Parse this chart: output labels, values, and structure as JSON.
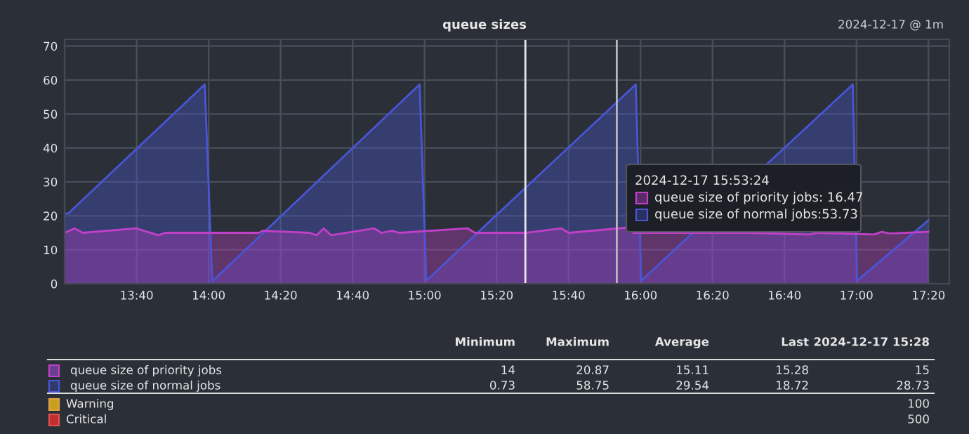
{
  "chart_data": {
    "type": "area",
    "title": "queue sizes",
    "subtitle": "2024-12-17 @ 1m",
    "x": [
      13.333,
      13.379,
      13.417,
      13.667,
      13.7,
      13.767,
      13.8,
      14.233,
      14.25,
      14.467,
      14.5,
      14.533,
      14.567,
      14.767,
      14.8,
      14.85,
      14.883,
      15.2,
      15.233,
      15.467,
      15.633,
      15.667,
      15.933,
      15.967,
      16.5,
      16.783,
      16.817,
      17.083,
      17.117,
      17.15,
      17.333
    ],
    "series": [
      {
        "name": "queue size of normal jobs",
        "color": "#4a55d6",
        "x": [
          13.333,
          13.35,
          13.982,
          14.017,
          14.977,
          15.008,
          15.978,
          16.003,
          16.983,
          17.003,
          17.333
        ],
        "values": [
          20.7,
          20.7,
          58.7,
          0.7,
          58.7,
          0.9,
          58.7,
          0.9,
          58.7,
          0.9,
          18.7
        ]
      },
      {
        "name": "queue size of priority jobs",
        "color": "#c040c8",
        "values": [
          15,
          16.3,
          15,
          16.3,
          15.6,
          14.3,
          15,
          15,
          15.6,
          15,
          14.3,
          16.3,
          14.3,
          16.3,
          15,
          15.6,
          15,
          16.3,
          15,
          15,
          16.3,
          15,
          16.5,
          15,
          15,
          14.5,
          15,
          14.5,
          15.3,
          14.8,
          15.3
        ]
      }
    ],
    "xlim": [
      13.333,
      17.43
    ],
    "xticks": [
      {
        "value": 13.6667,
        "label": "13:40"
      },
      {
        "value": 14,
        "label": "14:00"
      },
      {
        "value": 14.3333,
        "label": "14:20"
      },
      {
        "value": 14.6667,
        "label": "14:40"
      },
      {
        "value": 15,
        "label": "15:00"
      },
      {
        "value": 15.3333,
        "label": "15:20"
      },
      {
        "value": 15.6667,
        "label": "15:40"
      },
      {
        "value": 16,
        "label": "16:00"
      },
      {
        "value": 16.3333,
        "label": "16:20"
      },
      {
        "value": 16.6667,
        "label": "16:40"
      },
      {
        "value": 17,
        "label": "17:00"
      },
      {
        "value": 17.3333,
        "label": "17:20"
      }
    ],
    "ylim": [
      0,
      72
    ],
    "yticks": [
      0,
      10,
      20,
      30,
      40,
      50,
      60,
      70
    ],
    "grid": true,
    "legend": "bottom",
    "ref_lines": [
      {
        "axis": "x",
        "value": 15.4667,
        "color": "#e8e8e8"
      },
      {
        "axis": "x",
        "value": 15.89,
        "color": "#b8b8c0"
      }
    ],
    "annotations": [
      "2024-12-17 15:53:24",
      "queue size of priority jobs: 16.47",
      "queue size of normal jobs:53.73",
      "Minimum",
      "Maximum",
      "Average",
      "Last",
      "2024-12-17 15:28",
      "14",
      "20.87",
      "15.11",
      "15.28",
      "15",
      "0.73",
      "58.75",
      "29.54",
      "18.72",
      "28.73",
      "Warning",
      "100",
      "Critical",
      "500"
    ]
  }
}
